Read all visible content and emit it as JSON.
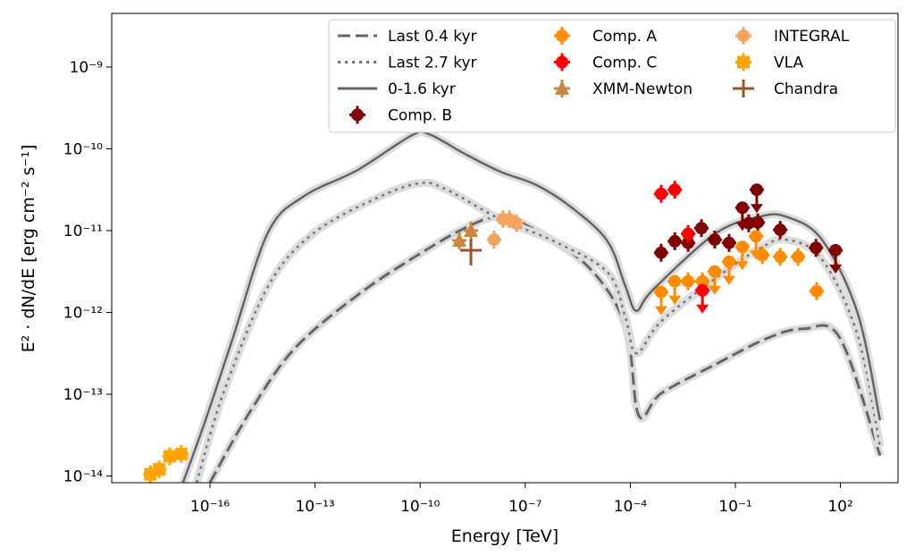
{
  "chart_data": {
    "type": "scatter",
    "xlabel": "Energy [TeV]",
    "ylabel": "E² · dN/dE [erg cm⁻² s⁻¹]",
    "xscale": "log",
    "yscale": "log",
    "xlim_log10": [
      -18.8,
      3.6
    ],
    "ylim_log10": [
      -14.09,
      -8.34
    ],
    "xticks": [
      {
        "v": -16,
        "label": "10⁻¹⁶"
      },
      {
        "v": -13,
        "label": "10⁻¹³"
      },
      {
        "v": -10,
        "label": "10⁻¹⁰"
      },
      {
        "v": -7,
        "label": "10⁻⁷"
      },
      {
        "v": -4,
        "label": "10⁻⁴"
      },
      {
        "v": -1,
        "label": "10⁻¹"
      },
      {
        "v": 2,
        "label": "10²"
      }
    ],
    "yticks": [
      {
        "v": -9,
        "label": "10⁻⁹"
      },
      {
        "v": -10,
        "label": "10⁻¹⁰"
      },
      {
        "v": -11,
        "label": "10⁻¹¹"
      },
      {
        "v": -12,
        "label": "10⁻¹²"
      },
      {
        "v": -13,
        "label": "10⁻¹³"
      },
      {
        "v": -14,
        "label": "10⁻¹⁴"
      }
    ],
    "legend_position": "top-right",
    "curves": [
      {
        "name": "Last 0.4 kyr",
        "style": "dashed",
        "color": "#666666",
        "points_log10": [
          [
            -16.0,
            -14.08
          ],
          [
            -14.85,
            -13.21
          ],
          [
            -13.58,
            -12.44
          ],
          [
            -11.79,
            -11.79
          ],
          [
            -10.26,
            -11.35
          ],
          [
            -8.73,
            -10.97
          ],
          [
            -7.71,
            -10.83
          ],
          [
            -6.69,
            -11.0
          ],
          [
            -5.16,
            -11.46
          ],
          [
            -4.14,
            -12.17
          ],
          [
            -3.76,
            -13.26
          ],
          [
            -3.12,
            -12.99
          ],
          [
            -1.59,
            -12.64
          ],
          [
            -0.06,
            -12.31
          ],
          [
            0.96,
            -12.2
          ],
          [
            1.98,
            -12.31
          ],
          [
            3.13,
            -13.75
          ]
        ]
      },
      {
        "name": "Last 2.7 kyr",
        "style": "dotted",
        "color": "#777777",
        "points_log10": [
          [
            -16.38,
            -14.08
          ],
          [
            -15.62,
            -12.99
          ],
          [
            -14.34,
            -11.68
          ],
          [
            -13.07,
            -11.04
          ],
          [
            -11.28,
            -10.61
          ],
          [
            -10.01,
            -10.42
          ],
          [
            -9.24,
            -10.5
          ],
          [
            -7.71,
            -10.86
          ],
          [
            -6.18,
            -11.13
          ],
          [
            -4.65,
            -11.51
          ],
          [
            -4.14,
            -12.06
          ],
          [
            -3.83,
            -12.5
          ],
          [
            -3.12,
            -12.11
          ],
          [
            -1.59,
            -11.59
          ],
          [
            -0.31,
            -11.22
          ],
          [
            0.45,
            -11.11
          ],
          [
            1.47,
            -11.35
          ],
          [
            2.49,
            -12.28
          ],
          [
            3.13,
            -13.64
          ]
        ]
      },
      {
        "name": "0-1.6 kyr",
        "style": "solid",
        "color": "#666666",
        "points_log10": [
          [
            -16.77,
            -14.08
          ],
          [
            -16.13,
            -13.32
          ],
          [
            -15.36,
            -12.33
          ],
          [
            -14.34,
            -11.02
          ],
          [
            -13.32,
            -10.58
          ],
          [
            -11.79,
            -10.26
          ],
          [
            -10.26,
            -9.84
          ],
          [
            -9.75,
            -9.82
          ],
          [
            -8.73,
            -10.06
          ],
          [
            -7.71,
            -10.28
          ],
          [
            -6.69,
            -10.44
          ],
          [
            -5.67,
            -10.72
          ],
          [
            -4.65,
            -11.13
          ],
          [
            -4.14,
            -11.68
          ],
          [
            -3.83,
            -11.98
          ],
          [
            -3.37,
            -11.73
          ],
          [
            -1.59,
            -11.04
          ],
          [
            -0.31,
            -10.83
          ],
          [
            0.45,
            -10.83
          ],
          [
            1.47,
            -11.11
          ],
          [
            2.49,
            -12.01
          ],
          [
            3.13,
            -13.32
          ]
        ]
      }
    ],
    "series": [
      {
        "name": "Comp. B",
        "marker": "circle",
        "color": "#800000",
        "points_log10": [
          [
            -3.12,
            -11.27,
            0
          ],
          [
            -2.73,
            -11.13,
            0
          ],
          [
            -2.35,
            -11.15,
            0
          ],
          [
            -1.97,
            -10.97,
            0
          ],
          [
            -1.59,
            -11.11,
            0
          ],
          [
            -1.18,
            -11.15,
            0
          ],
          [
            -0.8,
            -10.72,
            1
          ],
          [
            -0.39,
            -10.5,
            1
          ],
          [
            -0.62,
            -10.91,
            0
          ],
          [
            -0.36,
            -10.9,
            0
          ],
          [
            0.28,
            -10.99,
            0
          ],
          [
            1.3,
            -11.21,
            0
          ],
          [
            1.86,
            -11.24,
            1
          ]
        ]
      },
      {
        "name": "Comp. A",
        "marker": "circle",
        "color": "#ff8c00",
        "points_log10": [
          [
            -3.12,
            -11.75,
            1
          ],
          [
            -2.73,
            -11.62,
            1
          ],
          [
            -2.35,
            -11.62,
            0
          ],
          [
            -1.94,
            -11.62,
            0
          ],
          [
            -1.59,
            -11.5,
            1
          ],
          [
            -1.18,
            -11.38,
            1
          ],
          [
            -0.8,
            -11.2,
            1
          ],
          [
            -0.41,
            -11.07,
            1
          ],
          [
            -0.23,
            -11.3,
            0
          ],
          [
            0.28,
            -11.32,
            0
          ],
          [
            0.79,
            -11.32,
            0
          ],
          [
            1.32,
            -11.74,
            0
          ]
        ]
      },
      {
        "name": "Comp. C",
        "marker": "circle",
        "color": "#ff0000",
        "points_log10": [
          [
            -3.12,
            -10.55,
            0
          ],
          [
            -2.73,
            -10.5,
            0
          ],
          [
            -2.35,
            -11.04,
            0
          ],
          [
            -1.94,
            -11.73,
            1
          ]
        ]
      },
      {
        "name": "XMM-Newton",
        "marker": "triangle",
        "color": "#cd853f",
        "points_log10": [
          [
            -8.88,
            -11.12,
            0
          ],
          [
            -8.55,
            -11.0,
            0
          ]
        ]
      },
      {
        "name": "INTEGRAL",
        "marker": "circle",
        "color": "#f4a460",
        "points_log10": [
          [
            -7.89,
            -11.11,
            0
          ],
          [
            -7.63,
            -10.86,
            0
          ],
          [
            -7.45,
            -10.86,
            0
          ],
          [
            -7.25,
            -10.91,
            0
          ]
        ]
      },
      {
        "name": "VLA",
        "marker": "square",
        "color": "#ffa500",
        "points_log10": [
          [
            -17.7,
            -13.98,
            0
          ],
          [
            -17.45,
            -13.92,
            0
          ],
          [
            -17.15,
            -13.76,
            0
          ],
          [
            -16.82,
            -13.73,
            0
          ]
        ]
      },
      {
        "name": "Chandra",
        "marker": "plus",
        "color": "#a0522d",
        "points_log10": [
          [
            -8.55,
            -11.24,
            0
          ]
        ]
      }
    ]
  }
}
